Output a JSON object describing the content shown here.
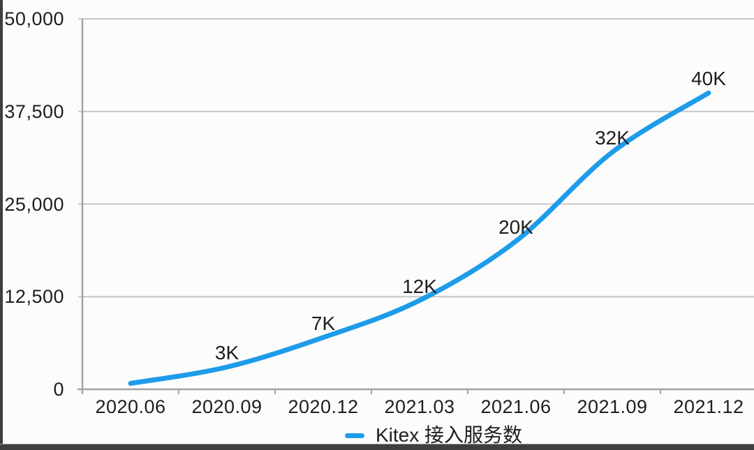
{
  "chart_data": {
    "type": "line",
    "title": "",
    "categories": [
      "2020.06",
      "2020.09",
      "2020.12",
      "2021.03",
      "2021.06",
      "2021.09",
      "2021.12"
    ],
    "series": [
      {
        "name": "Kitex 接入服务数",
        "values": [
          800,
          3000,
          7000,
          12000,
          20000,
          32000,
          40000
        ],
        "point_labels": [
          "",
          "3K",
          "7K",
          "12K",
          "20K",
          "32K",
          "40K"
        ],
        "color": "#1E9CE9"
      }
    ],
    "xlabel": "",
    "ylabel": "",
    "ylim": [
      0,
      50000
    ],
    "yticks": [
      0,
      12500,
      25000,
      37500,
      50000
    ],
    "ytick_labels": [
      "0",
      "12,500",
      "25,000",
      "37,500",
      "50,000"
    ],
    "grid": "horizontal",
    "legend_position": "bottom-center"
  },
  "legend": {
    "label": "Kitex 接入服务数"
  },
  "colors": {
    "line": "#1E9CE9",
    "grid": "#c7c7c7",
    "axis": "#a2a2a2",
    "text": "#1e1e1e",
    "background": "#fcfcfc",
    "frame_edge": "#3f3f3f"
  }
}
